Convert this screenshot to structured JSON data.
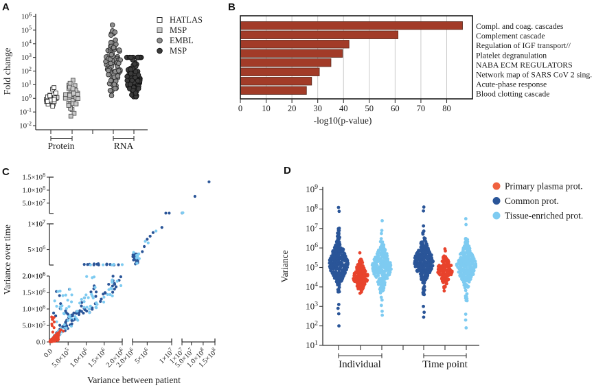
{
  "figure": {
    "background": "#ffffff"
  },
  "palette": {
    "dark": "#2A5598",
    "light": "#7ECBF1",
    "red": "#E8432C",
    "legend_red": "#F0613F",
    "bar": "#A23B28",
    "bar_stroke": "#58281C",
    "axis": "#333333",
    "grid": "#C9C9C9",
    "ink": "#1a1a1a"
  },
  "chart_data": [
    {
      "panel_label": "A",
      "type": "swarm-log",
      "ylabel": "Fold change",
      "yscale": "log",
      "ylim_exponents": [
        -2,
        6
      ],
      "ytick_base": "10",
      "ytick_exponents": [
        6,
        5,
        4,
        3,
        2,
        1,
        0,
        -1,
        -2
      ],
      "xgroups": [
        {
          "label": "Protein"
        },
        {
          "label": "RNA"
        }
      ],
      "legend": [
        {
          "label": "HATLAS",
          "marker": "square",
          "fill": "#FFFFFF",
          "stroke": "#2B2B2B"
        },
        {
          "label": "MSP",
          "marker": "square",
          "fill": "#C9C9C9",
          "stroke": "#555555"
        },
        {
          "label": "EMBL",
          "marker": "circle",
          "fill": "#8F8F8F",
          "stroke": "#2B2B2B"
        },
        {
          "label": "MSP",
          "marker": "circle",
          "fill": "#3B3B3B",
          "stroke": "#141414"
        }
      ],
      "series": [
        {
          "name": "HATLAS",
          "marker": "square",
          "fill": "#FFFFFF",
          "stroke": "#2B2B2B",
          "n": 26,
          "log10_center": 0.08,
          "log10_sd": 0.42,
          "log10_range": [
            -0.72,
            1.18
          ],
          "extras": [],
          "max_w": 8
        },
        {
          "name": "MSP",
          "marker": "square",
          "fill": "#C9C9C9",
          "stroke": "#555555",
          "n": 40,
          "log10_center": 0.12,
          "log10_sd": 0.55,
          "log10_range": [
            -1.32,
            1.62
          ],
          "extras": [],
          "max_w": 9
        },
        {
          "name": "EMBL",
          "marker": "circle",
          "fill": "#8F8F8F",
          "stroke": "#2B2B2B",
          "n": 95,
          "log10_center": 2.55,
          "log10_sd": 1.05,
          "log10_range": [
            0.2,
            4.75
          ],
          "extras": [
            5.38,
            4.95,
            4.85
          ],
          "max_w": 10
        },
        {
          "name": "MSP",
          "marker": "circle",
          "fill": "#3B3B3B",
          "stroke": "#141414",
          "n": 90,
          "log10_center": 1.5,
          "log10_sd": 0.8,
          "log10_range": [
            0.12,
            3.0
          ],
          "cap_log10": 3.0,
          "cap_extra": 12,
          "extras": [],
          "max_w": 9
        }
      ]
    },
    {
      "panel_label": "B",
      "type": "bar",
      "categories": [
        "Compl. and coag. cascades",
        "Complement cascade",
        "Regulation of IGF transport//",
        "Platelet degranulation",
        "NABA ECM REGULATORS",
        "Network map of SARS CoV 2 sing.",
        "Acute-phase response",
        "Blood clotting cascade"
      ],
      "values": [
        86,
        61,
        42,
        39.5,
        35,
        30.5,
        27.5,
        25.5
      ],
      "xlabel": "-log10(p-value)",
      "xlim": [
        0,
        90
      ],
      "xticks": [
        0,
        10,
        20,
        30,
        40,
        50,
        60,
        70,
        80
      ],
      "grid": true
    },
    {
      "panel_label": "C",
      "type": "scatter-broken-axes",
      "xlabel": "Variance between patient",
      "ylabel": "Variance over time",
      "x_segments": [
        {
          "range": [
            0,
            2000000
          ],
          "ticks": [
            {
              "v": 0,
              "m": "0.0",
              "s": ""
            },
            {
              "v": 500000,
              "m": "5.0×10",
              "s": "5"
            },
            {
              "v": 1000000,
              "m": "1.0×10",
              "s": "6"
            },
            {
              "v": 1500000,
              "m": "1.5×10",
              "s": "6"
            },
            {
              "v": 2000000,
              "m": "2.0×10",
              "s": "6"
            }
          ]
        },
        {
          "range": [
            2000000,
            10000000
          ],
          "ticks": [
            {
              "v": 2000000,
              "m": "2.0×10",
              "s": "6"
            },
            {
              "v": 5000000,
              "m": "5×10",
              "s": "6"
            },
            {
              "v": 10000000,
              "m": "1×10",
              "s": "7"
            }
          ]
        },
        {
          "range": [
            10000000,
            150000000
          ],
          "ticks": [
            {
              "v": 10000000,
              "m": "1×10",
              "s": "7"
            },
            {
              "v": 50000000,
              "m": "5.0×10",
              "s": "7"
            },
            {
              "v": 100000000,
              "m": "1.0×10",
              "s": "8"
            },
            {
              "v": 150000000,
              "m": "1.5×10",
              "s": "8"
            }
          ]
        }
      ],
      "y_segments": [
        {
          "range": [
            0,
            2000000
          ],
          "ticks": [
            {
              "v": 0,
              "m": "0.0",
              "s": ""
            },
            {
              "v": 500000,
              "m": "5.0×10",
              "s": "5"
            },
            {
              "v": 1000000,
              "m": "1.0×10",
              "s": "6"
            },
            {
              "v": 1500000,
              "m": "1.5×10",
              "s": "6"
            },
            {
              "v": 2000000,
              "m": "2.0×10",
              "s": "6"
            }
          ]
        },
        {
          "range": [
            2000000,
            10000000
          ],
          "ticks": [
            {
              "v": 2000000,
              "m": "2.0×10",
              "s": "6"
            },
            {
              "v": 5000000,
              "m": "5×10",
              "s": "6"
            },
            {
              "v": 10000000,
              "m": "1×10",
              "s": "7"
            }
          ]
        },
        {
          "range": [
            10000000,
            150000000
          ],
          "ticks": [
            {
              "v": 10000000,
              "m": "1×10",
              "s": "7"
            },
            {
              "v": 50000000,
              "m": "5.0×10",
              "s": "7"
            },
            {
              "v": 100000000,
              "m": "1.0×10",
              "s": "8"
            },
            {
              "v": 150000000,
              "m": "1.5×10",
              "s": "8"
            }
          ]
        }
      ],
      "clusters": [
        {
          "kind": "wedge",
          "color": "dark",
          "n": 125,
          "x_max": 2000000,
          "x_pow": 2.6,
          "slope": [
            0.8,
            1.45
          ],
          "y_add": 25000
        },
        {
          "kind": "wedge",
          "color": "light",
          "n": 105,
          "x_max": 2000000,
          "x_pow": 2.6,
          "slope": [
            0.8,
            1.5
          ],
          "y_add": 25000
        },
        {
          "kind": "box",
          "color": "dark",
          "n": 14,
          "x": [
            60000,
            620000
          ],
          "y": [
            400000,
            1750000
          ]
        },
        {
          "kind": "box",
          "color": "light",
          "n": 20,
          "x": [
            60000,
            700000
          ],
          "y": [
            350000,
            1600000
          ]
        },
        {
          "kind": "box",
          "color": "dark",
          "n": 14,
          "x": [
            850000,
            2000000
          ],
          "y": [
            1950000,
            2250000
          ]
        },
        {
          "kind": "box",
          "color": "light",
          "n": 8,
          "x": [
            1000000,
            2050000
          ],
          "y": [
            1950000,
            2200000
          ]
        },
        {
          "kind": "box",
          "color": "dark",
          "n": 22,
          "x": [
            2050000,
            3100000
          ],
          "y": [
            2150000,
            4300000
          ]
        },
        {
          "kind": "box",
          "color": "light",
          "n": 9,
          "x": [
            2200000,
            3400000
          ],
          "y": [
            2300000,
            4500000
          ]
        },
        {
          "kind": "points",
          "color": "dark",
          "pts": [
            [
              4400000,
              5600000
            ],
            [
              5000000,
              7000000
            ],
            [
              5600000,
              7600000
            ],
            [
              6200000,
              8300000
            ],
            [
              8000000,
              9300000
            ],
            [
              4000000,
              4600000
            ],
            [
              8800000,
              11500000
            ],
            [
              9500000,
              11500000
            ],
            [
              10500000,
              12000000
            ],
            [
              13000000,
              12800000
            ],
            [
              65000000,
              76000000
            ],
            [
              125000000,
              132000000
            ]
          ]
        },
        {
          "kind": "points",
          "color": "light",
          "pts": [
            [
              5200000,
              6300000
            ],
            [
              6800000,
              8600000
            ],
            [
              4600000,
              6600000
            ],
            [
              12000000,
              12500000
            ],
            [
              14000000,
              13000000
            ],
            [
              11500000,
              12200000
            ]
          ]
        },
        {
          "kind": "wedge",
          "color": "red",
          "n": 260,
          "x_max": 230000,
          "x_pow": 2.2,
          "slope": [
            0.15,
            1.25
          ],
          "y_add": 30000
        },
        {
          "kind": "box",
          "color": "red",
          "n": 9,
          "x": [
            15000,
            130000
          ],
          "y": [
            280000,
            780000
          ]
        },
        {
          "kind": "wedge",
          "color": "red",
          "n": 14,
          "x_max": 450000,
          "x_pow": 1.2,
          "slope": [
            0.85,
            1.35
          ],
          "y_add": 0
        }
      ]
    },
    {
      "panel_label": "D",
      "type": "swarm-log",
      "ylabel": "Variance",
      "yscale": "log",
      "ylim_exponents": [
        1,
        9
      ],
      "ytick_base": "10",
      "ytick_exponents": [
        9,
        8,
        7,
        6,
        5,
        4,
        3,
        2,
        1
      ],
      "xgroups": [
        {
          "label": "Individual"
        },
        {
          "label": "Time point"
        }
      ],
      "legend": [
        {
          "label": "Primary plasma prot.",
          "color": "#F0613F"
        },
        {
          "label": "Common prot.",
          "color": "#2A5598"
        },
        {
          "label": "Tissue-enriched prot.",
          "color": "#7ECBF1"
        }
      ],
      "series": [
        {
          "name": "Common prot.",
          "color": "dark",
          "n": 270,
          "log10_center": 5.22,
          "log10_sd": 0.6,
          "log10_range": [
            3.35,
            7.15
          ],
          "extras": [
            8.08,
            7.88,
            2.0,
            2.62,
            2.9,
            3.1
          ],
          "max_w": 13
        },
        {
          "name": "Primary plasma prot.",
          "color": "red",
          "n": 150,
          "log10_center": 4.55,
          "log10_sd": 0.4,
          "log10_range": [
            3.62,
            5.45
          ],
          "extras": [
            5.75
          ],
          "max_w": 10
        },
        {
          "name": "Tissue-enriched prot.",
          "color": "light",
          "n": 240,
          "log10_center": 5.02,
          "log10_sd": 0.6,
          "log10_range": [
            2.9,
            6.95
          ],
          "extras": [
            7.4,
            6.9,
            2.55,
            2.75,
            3.05
          ],
          "max_w": 13
        },
        {
          "name": "Common prot.",
          "color": "dark",
          "n": 270,
          "log10_center": 5.3,
          "log10_sd": 0.58,
          "log10_range": [
            3.3,
            7.2
          ],
          "extras": [
            8.1,
            7.9,
            2.45,
            2.7,
            3.0
          ],
          "max_w": 13
        },
        {
          "name": "Primary plasma prot.",
          "color": "red",
          "n": 150,
          "log10_center": 4.88,
          "log10_sd": 0.38,
          "log10_range": [
            3.95,
            5.6
          ],
          "extras": [
            5.95,
            5.85,
            3.8
          ],
          "max_w": 10
        },
        {
          "name": "Tissue-enriched prot.",
          "color": "light",
          "n": 250,
          "log10_center": 5.12,
          "log10_sd": 0.6,
          "log10_range": [
            2.95,
            7.1
          ],
          "extras": [
            7.5,
            7.2,
            1.9,
            2.3,
            2.6,
            3.3
          ],
          "max_w": 13
        }
      ]
    }
  ]
}
